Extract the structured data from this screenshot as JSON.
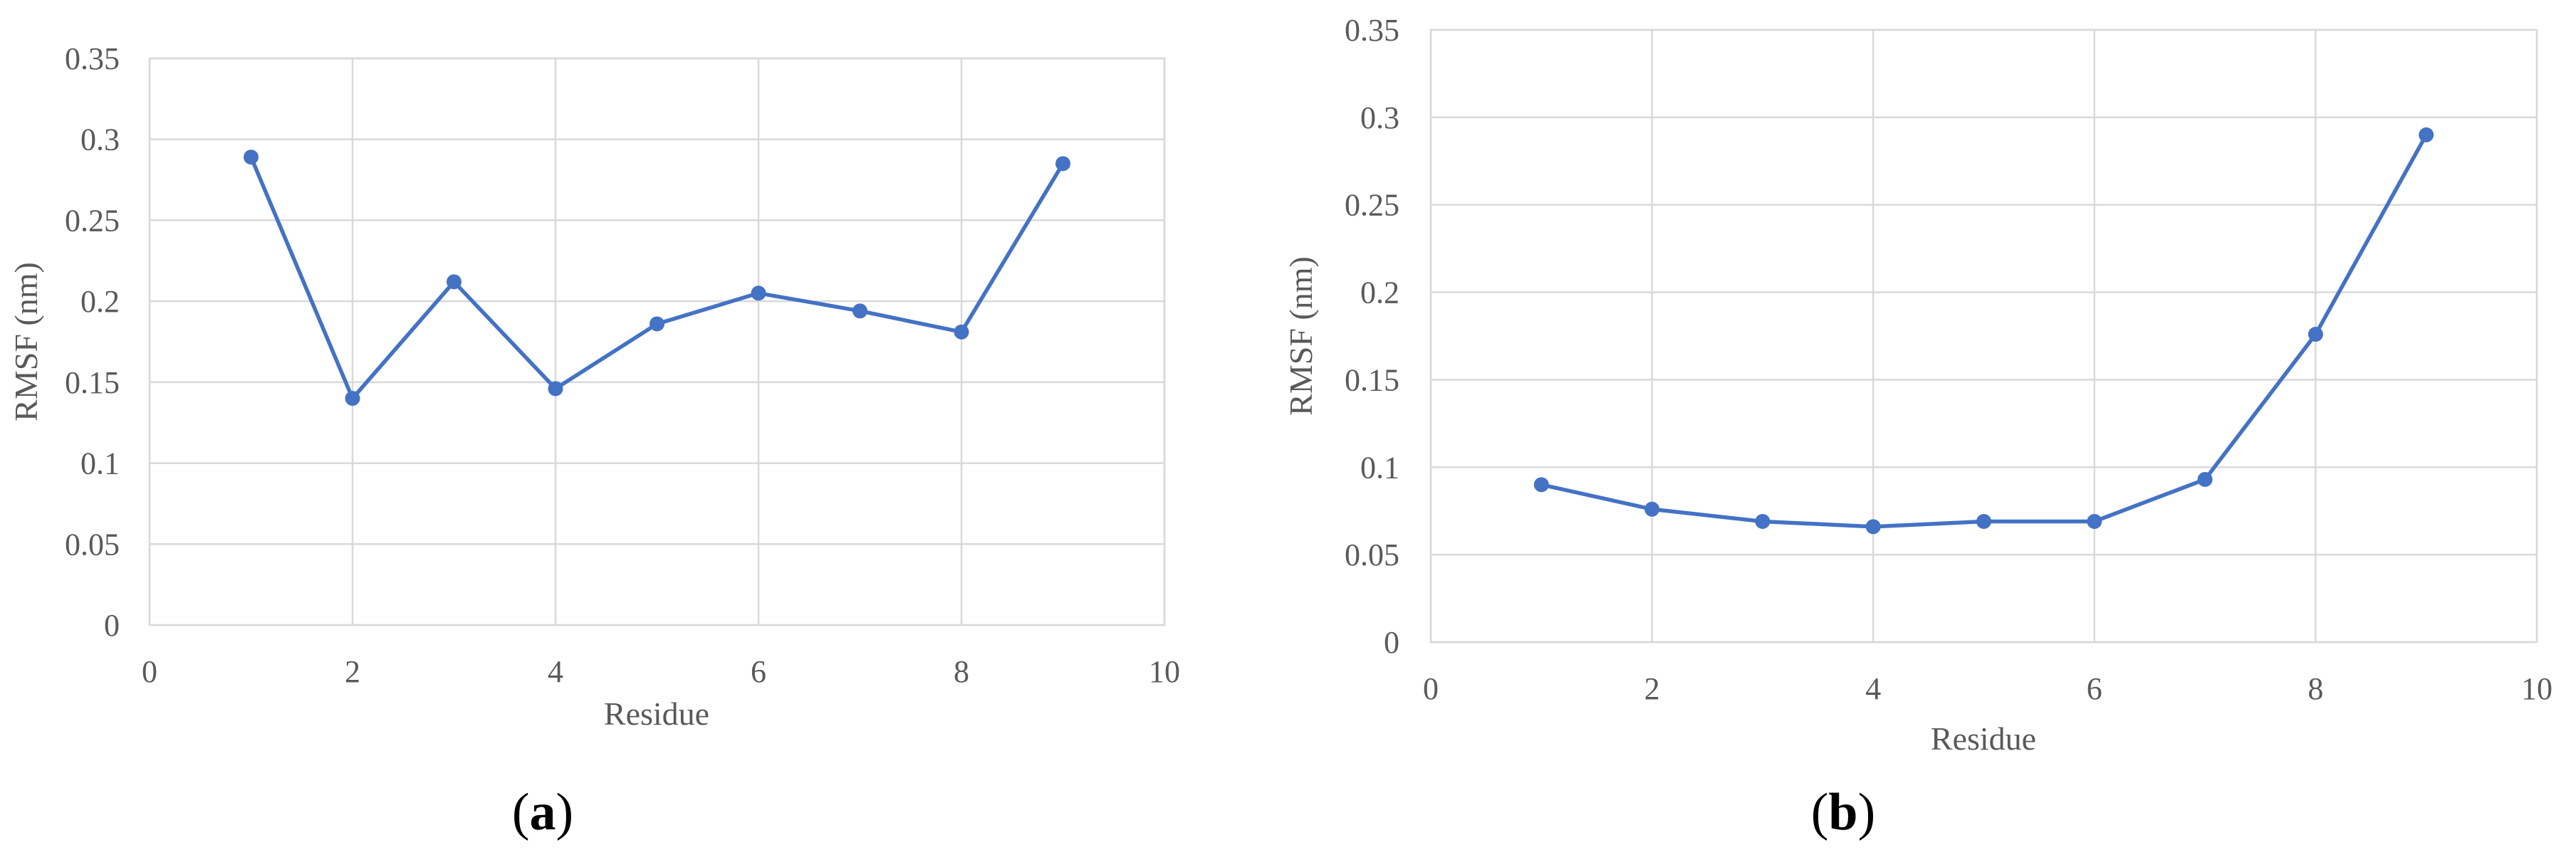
{
  "chart_data": [
    {
      "type": "scatter",
      "panel_label": "a",
      "title": "",
      "xlabel": "Residue",
      "ylabel": "RMSF (nm)",
      "xlim": [
        0,
        10
      ],
      "ylim": [
        0,
        0.35
      ],
      "x_ticks": [
        0,
        2,
        4,
        6,
        8,
        10
      ],
      "y_ticks": [
        0,
        0.05,
        0.1,
        0.15,
        0.2,
        0.25,
        0.3,
        0.35
      ],
      "grid": true,
      "legend": "none",
      "color": "#4472c4",
      "series": [
        {
          "x": [
            1,
            2,
            3,
            4,
            5,
            6,
            7,
            8,
            9
          ],
          "y": [
            0.289,
            0.14,
            0.212,
            0.146,
            0.186,
            0.205,
            0.194,
            0.181,
            0.285
          ]
        }
      ]
    },
    {
      "type": "scatter",
      "panel_label": "b",
      "title": "",
      "xlabel": "Residue",
      "ylabel": "RMSF (nm)",
      "xlim": [
        0,
        10
      ],
      "ylim": [
        0,
        0.35
      ],
      "x_ticks": [
        0,
        2,
        4,
        6,
        8,
        10
      ],
      "y_ticks": [
        0,
        0.05,
        0.1,
        0.15,
        0.2,
        0.25,
        0.3,
        0.35
      ],
      "grid": true,
      "legend": "none",
      "color": "#4472c4",
      "series": [
        {
          "x": [
            1,
            2,
            3,
            4,
            5,
            6,
            7,
            8,
            9
          ],
          "y": [
            0.09,
            0.076,
            0.069,
            0.066,
            0.069,
            0.069,
            0.093,
            0.176,
            0.29
          ]
        }
      ]
    }
  ]
}
